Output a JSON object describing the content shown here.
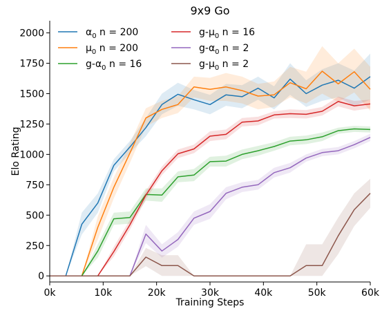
{
  "chart_data": {
    "type": "line",
    "title": "9x9 Go",
    "xlabel": "Training Steps",
    "ylabel": "Elo Rating",
    "xlim": [
      0,
      60000
    ],
    "ylim": [
      -50,
      2100
    ],
    "x_ticks": [
      0,
      10000,
      20000,
      30000,
      40000,
      50000,
      60000
    ],
    "x_tick_labels": [
      "0k",
      "10k",
      "20k",
      "30k",
      "40k",
      "50k",
      "60k"
    ],
    "y_ticks": [
      0,
      250,
      500,
      750,
      1000,
      1250,
      1500,
      1750,
      2000
    ],
    "y_tick_labels": [
      "0",
      "250",
      "500",
      "750",
      "1000",
      "1250",
      "1500",
      "1750",
      "2000"
    ],
    "grid": false,
    "legend_position": "top-left",
    "x": [
      0,
      3000,
      6000,
      9000,
      12000,
      15000,
      18000,
      21000,
      24000,
      27000,
      30000,
      33000,
      36000,
      39000,
      42000,
      45000,
      48000,
      51000,
      54000,
      57000,
      60000
    ],
    "series": [
      {
        "name_parts": [
          "α",
          "0",
          " n = 200"
        ],
        "color": "#1f77b4",
        "values": [
          0,
          0,
          425,
          600,
          910,
          1060,
          1220,
          1410,
          1495,
          1450,
          1410,
          1490,
          1475,
          1545,
          1465,
          1620,
          1500,
          1570,
          1610,
          1545,
          1640
        ],
        "lower": [
          0,
          0,
          340,
          520,
          860,
          1010,
          1150,
          1330,
          1400,
          1370,
          1330,
          1400,
          1380,
          1450,
          1370,
          1490,
          1390,
          1440,
          1470,
          1400,
          1450
        ],
        "upper": [
          0,
          0,
          520,
          680,
          960,
          1110,
          1300,
          1500,
          1590,
          1530,
          1490,
          1580,
          1570,
          1640,
          1560,
          1750,
          1610,
          1700,
          1750,
          1690,
          1830
        ]
      },
      {
        "name_parts": [
          "μ",
          "0",
          " n = 200"
        ],
        "color": "#ff7f0e",
        "values": [
          0,
          0,
          0,
          400,
          730,
          1010,
          1300,
          1370,
          1410,
          1555,
          1535,
          1555,
          1525,
          1480,
          1490,
          1590,
          1540,
          1685,
          1580,
          1680,
          1535
        ],
        "lower": [
          0,
          0,
          0,
          300,
          640,
          930,
          1230,
          1300,
          1340,
          1470,
          1440,
          1440,
          1420,
          1370,
          1390,
          1470,
          1420,
          1500,
          1430,
          1510,
          1360
        ],
        "upper": [
          0,
          0,
          0,
          490,
          810,
          1090,
          1380,
          1440,
          1480,
          1640,
          1630,
          1670,
          1640,
          1580,
          1600,
          1720,
          1680,
          1890,
          1750,
          1870,
          1720
        ]
      },
      {
        "name_parts": [
          "g-α",
          "0",
          " n = 16"
        ],
        "color": "#2ca02c",
        "values": [
          0,
          0,
          0,
          205,
          470,
          480,
          670,
          665,
          815,
          830,
          940,
          945,
          1000,
          1030,
          1065,
          1110,
          1120,
          1145,
          1195,
          1210,
          1205
        ],
        "lower": [
          0,
          0,
          0,
          150,
          420,
          430,
          620,
          610,
          770,
          780,
          900,
          900,
          960,
          990,
          1030,
          1075,
          1085,
          1110,
          1170,
          1185,
          1180
        ],
        "upper": [
          0,
          0,
          0,
          260,
          520,
          530,
          720,
          720,
          860,
          880,
          980,
          990,
          1040,
          1070,
          1100,
          1145,
          1155,
          1180,
          1220,
          1235,
          1230
        ]
      },
      {
        "name_parts": [
          "g-μ",
          "0",
          " n = 16"
        ],
        "color": "#d62728",
        "values": [
          0,
          0,
          0,
          0,
          200,
          420,
          665,
          865,
          1005,
          1045,
          1150,
          1165,
          1265,
          1275,
          1325,
          1335,
          1330,
          1355,
          1435,
          1400,
          1415
        ],
        "lower": [
          0,
          0,
          0,
          0,
          160,
          380,
          630,
          830,
          970,
          1010,
          1110,
          1125,
          1230,
          1240,
          1295,
          1300,
          1295,
          1320,
          1395,
          1360,
          1380
        ],
        "upper": [
          0,
          0,
          0,
          0,
          240,
          460,
          700,
          900,
          1040,
          1080,
          1190,
          1205,
          1300,
          1310,
          1355,
          1370,
          1365,
          1390,
          1475,
          1440,
          1450
        ]
      },
      {
        "name_parts": [
          "g-α",
          "0",
          " n = 2"
        ],
        "color": "#9467bd",
        "values": [
          0,
          0,
          0,
          0,
          0,
          0,
          345,
          205,
          300,
          475,
          530,
          680,
          730,
          750,
          850,
          890,
          970,
          1015,
          1030,
          1080,
          1140
        ],
        "lower": [
          0,
          0,
          0,
          0,
          0,
          0,
          270,
          150,
          240,
          420,
          470,
          630,
          690,
          710,
          810,
          850,
          940,
          985,
          1000,
          1050,
          1110
        ],
        "upper": [
          0,
          0,
          0,
          0,
          0,
          0,
          420,
          260,
          360,
          530,
          590,
          730,
          770,
          790,
          890,
          930,
          1000,
          1045,
          1060,
          1110,
          1170
        ]
      },
      {
        "name_parts": [
          "g-μ",
          "0",
          " n = 2"
        ],
        "color": "#8c564b",
        "values": [
          0,
          0,
          0,
          0,
          0,
          0,
          155,
          85,
          85,
          0,
          0,
          0,
          0,
          0,
          0,
          0,
          85,
          85,
          330,
          545,
          680
        ],
        "lower": [
          0,
          0,
          0,
          0,
          0,
          0,
          80,
          0,
          0,
          0,
          0,
          0,
          0,
          0,
          0,
          0,
          0,
          0,
          180,
          410,
          560
        ],
        "upper": [
          0,
          0,
          0,
          0,
          0,
          0,
          230,
          170,
          170,
          0,
          0,
          0,
          0,
          0,
          0,
          0,
          260,
          260,
          480,
          680,
          800
        ]
      }
    ]
  }
}
